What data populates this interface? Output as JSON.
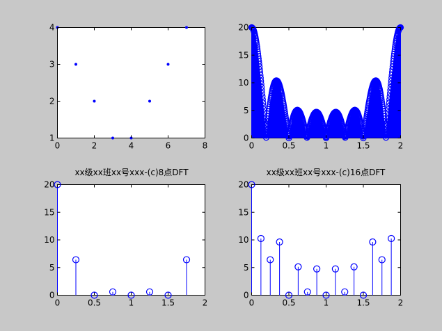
{
  "colors": {
    "figure_bg": "#c8c8c8",
    "axes_bg": "#ffffff",
    "data": "#0000ff",
    "axes": "#000000"
  },
  "chart_data": [
    {
      "id": "ax1",
      "type": "scatter",
      "marker": "dot",
      "title": "",
      "xlim": [
        0,
        8
      ],
      "ylim": [
        1,
        4
      ],
      "xticks": [
        0,
        2,
        4,
        6,
        8
      ],
      "yticks": [
        1,
        2,
        3,
        4
      ],
      "xticklabels": [
        "0",
        "2",
        "4",
        "6",
        "8"
      ],
      "yticklabels": [
        "1",
        "2",
        "3",
        "4"
      ],
      "x": [
        0,
        1,
        2,
        3,
        4,
        5,
        6,
        7
      ],
      "y": [
        4,
        3,
        2,
        1,
        1,
        2,
        3,
        4
      ]
    },
    {
      "id": "ax2",
      "type": "stem",
      "dense": true,
      "description_of_values": "|X(e^jw)| of x[n]=[4,3,2,1,1,2,3,4] over w/pi in [0,2]",
      "title": "",
      "xlim": [
        0,
        2
      ],
      "ylim": [
        0,
        20
      ],
      "xticks": [
        0,
        0.5,
        1,
        1.5,
        2
      ],
      "yticks": [
        0,
        5,
        10,
        15,
        20
      ],
      "xticklabels": [
        "0",
        "0.5",
        "1",
        "1.5",
        "2"
      ],
      "yticklabels": [
        "0",
        "5",
        "10",
        "15",
        "20"
      ],
      "sequence": [
        4,
        3,
        2,
        1,
        1,
        2,
        3,
        4
      ],
      "samples": 500
    },
    {
      "id": "ax3",
      "type": "stem",
      "title": "xx级xx班xx号xxx-(c)8点DFT",
      "xlim": [
        0,
        2
      ],
      "ylim": [
        0,
        20
      ],
      "xticks": [
        0,
        0.5,
        1,
        1.5,
        2
      ],
      "yticks": [
        0,
        5,
        10,
        15,
        20
      ],
      "xticklabels": [
        "0",
        "0.5",
        "1",
        "1.5",
        "2"
      ],
      "yticklabels": [
        "0",
        "5",
        "10",
        "15",
        "20"
      ],
      "x": [
        0,
        0.25,
        0.5,
        0.75,
        1.0,
        1.25,
        1.5,
        1.75
      ],
      "y": [
        20,
        6.41,
        0,
        0.59,
        0,
        0.59,
        0,
        6.41
      ]
    },
    {
      "id": "ax4",
      "type": "stem",
      "title": "xx级xx班xx号xxx-(c)16点DFT",
      "xlim": [
        0,
        2
      ],
      "ylim": [
        0,
        20
      ],
      "xticks": [
        0,
        0.5,
        1,
        1.5,
        2
      ],
      "yticks": [
        0,
        5,
        10,
        15,
        20
      ],
      "xticklabels": [
        "0",
        "0.5",
        "1",
        "1.5",
        "2"
      ],
      "yticklabels": [
        "0",
        "5",
        "10",
        "15",
        "20"
      ],
      "x": [
        0,
        0.125,
        0.25,
        0.375,
        0.5,
        0.625,
        0.75,
        0.875,
        1.0,
        1.125,
        1.25,
        1.375,
        1.5,
        1.625,
        1.75,
        1.875
      ],
      "y": [
        20,
        10.25,
        6.41,
        9.62,
        0,
        5.13,
        0.59,
        4.75,
        0,
        4.75,
        0.59,
        5.13,
        0,
        9.62,
        6.41,
        10.25
      ]
    }
  ]
}
